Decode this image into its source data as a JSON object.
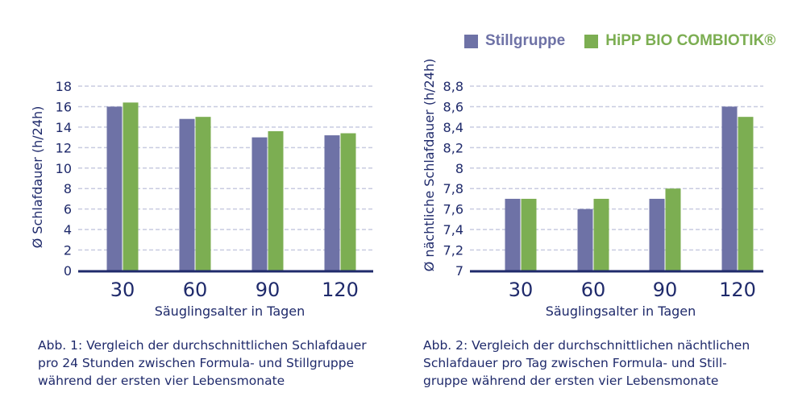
{
  "legend": {
    "items": [
      {
        "label": "Stillgruppe",
        "color": "#6e72a6"
      },
      {
        "label": "HiPP BIO COMBIOTIK®",
        "color": "#7cae52"
      }
    ]
  },
  "captions": {
    "fig1": [
      "Abb. 1: Vergleich der durchschnittlichen Schlafdauer",
      "pro 24 Stunden zwischen Formula- und Stillgruppe",
      "während der ersten vier Lebensmonate"
    ],
    "fig2": [
      "Abb. 2: Vergleich der durchschnittlichen nächtlichen",
      "Schlafdauer pro Tag zwischen Formula- und Still-",
      "gruppe während der ersten vier Lebensmonate"
    ]
  },
  "colors": {
    "text": "#1f2a6b",
    "axis": "#1f2a6b",
    "grid": "#c8cbe0",
    "stillgruppe": "#6e72a6",
    "combiotik": "#7cae52"
  },
  "chart_data": [
    {
      "type": "bar",
      "title": "",
      "xlabel": "Säuglingsalter in Tagen",
      "ylabel": "Ø Schlafdauer (h/24h)",
      "categories": [
        "30",
        "60",
        "90",
        "120"
      ],
      "ylim": [
        0,
        18
      ],
      "yticks": [
        0,
        2,
        4,
        6,
        8,
        10,
        12,
        14,
        16,
        18
      ],
      "ytick_labels": [
        "0",
        "2",
        "4",
        "6",
        "8",
        "10",
        "12",
        "14",
        "16",
        "18"
      ],
      "grid": true,
      "series": [
        {
          "name": "Stillgruppe",
          "values": [
            16.0,
            14.8,
            13.0,
            13.2
          ]
        },
        {
          "name": "HiPP BIO COMBIOTIK®",
          "values": [
            16.4,
            15.0,
            13.6,
            13.4
          ]
        }
      ]
    },
    {
      "type": "bar",
      "title": "",
      "xlabel": "Säuglingsalter in Tagen",
      "ylabel": "Ø nächtliche Schlafdauer (h/24h)",
      "categories": [
        "30",
        "60",
        "90",
        "120"
      ],
      "ylim": [
        7,
        8.8
      ],
      "yticks": [
        7,
        7.2,
        7.4,
        7.6,
        7.8,
        8,
        8.2,
        8.4,
        8.6,
        8.8
      ],
      "ytick_labels": [
        "7",
        "7,2",
        "7,4",
        "7,6",
        "7,8",
        "8",
        "8,2",
        "8,4",
        "8,6",
        "8,8"
      ],
      "grid": true,
      "series": [
        {
          "name": "Stillgruppe",
          "values": [
            7.7,
            7.6,
            7.7,
            8.6
          ]
        },
        {
          "name": "HiPP BIO COMBIOTIK®",
          "values": [
            7.7,
            7.7,
            7.8,
            8.5
          ]
        }
      ]
    }
  ]
}
